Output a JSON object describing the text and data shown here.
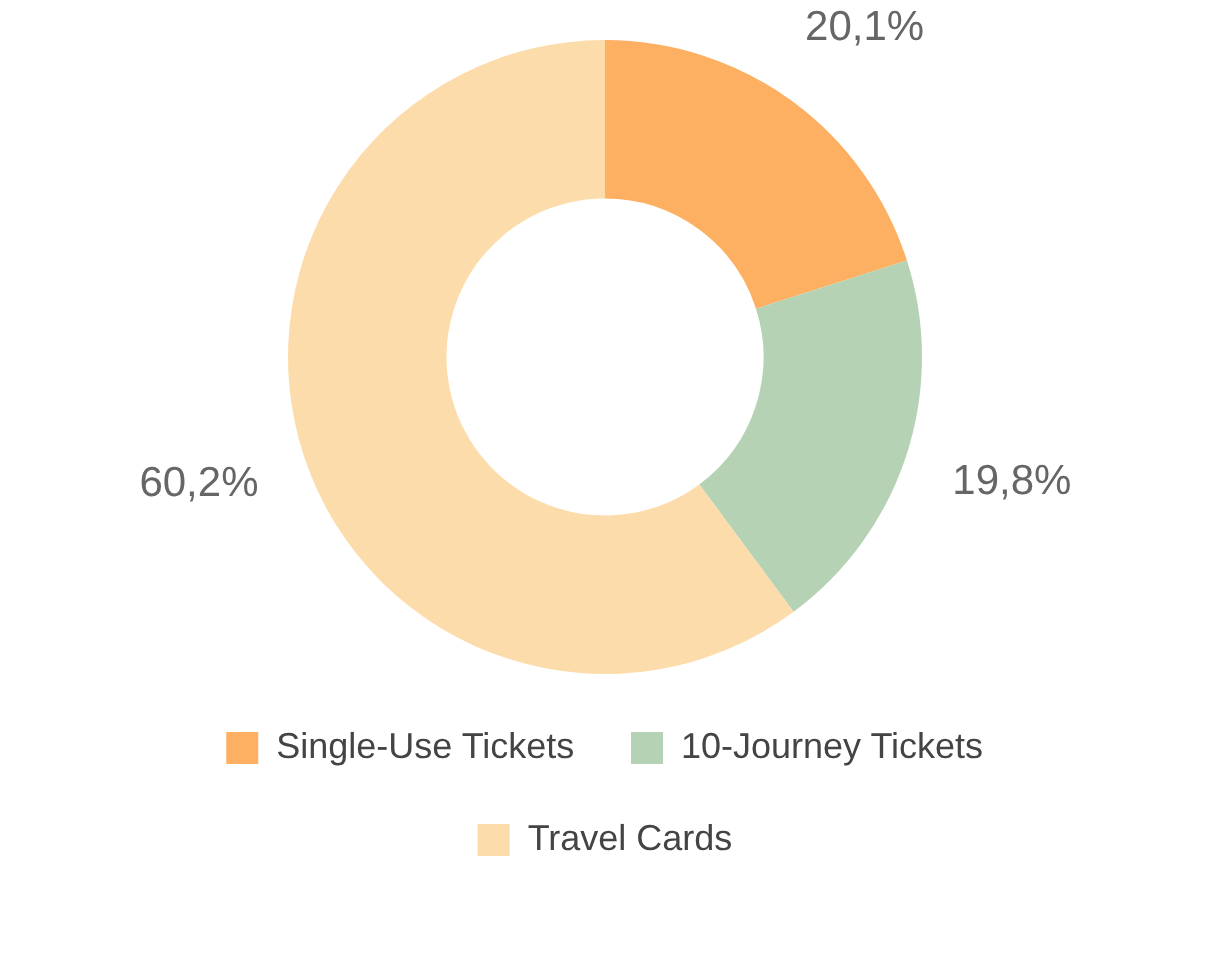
{
  "chart_data": {
    "type": "donut",
    "categories": [
      "Single-Use Tickets",
      "10-Journey Tickets",
      "Travel Cards"
    ],
    "values": [
      20.1,
      19.8,
      60.2
    ],
    "colors": [
      "#fdb062",
      "#b5d3b4",
      "#fddcab"
    ],
    "value_labels": [
      "20,1%",
      "19,8%",
      "60,2%"
    ],
    "legend": "bottom"
  }
}
